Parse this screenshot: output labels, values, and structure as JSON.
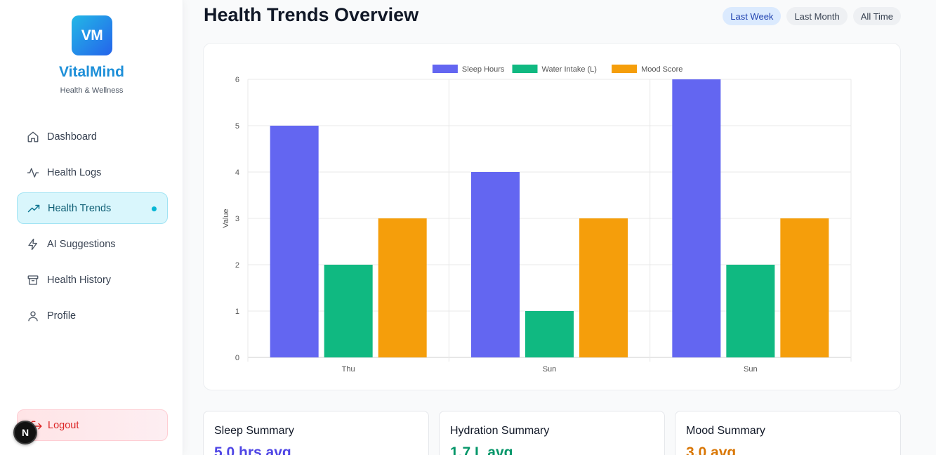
{
  "sidebar": {
    "logo_text": "VM",
    "brand": "VitalMind",
    "tagline": "Health & Wellness",
    "items": [
      {
        "label": "Dashboard",
        "icon": "home-icon"
      },
      {
        "label": "Health Logs",
        "icon": "activity-icon"
      },
      {
        "label": "Health Trends",
        "icon": "trending-up-icon",
        "active": true
      },
      {
        "label": "AI Suggestions",
        "icon": "zap-icon"
      },
      {
        "label": "Health History",
        "icon": "archive-icon"
      },
      {
        "label": "Profile",
        "icon": "user-icon"
      }
    ],
    "logout_label": "Logout",
    "badge_text": "N"
  },
  "header": {
    "title": "Health Trends Overview",
    "ranges": [
      {
        "label": "Last Week",
        "active": true
      },
      {
        "label": "Last Month"
      },
      {
        "label": "All Time"
      }
    ]
  },
  "chart_data": {
    "type": "bar",
    "categories": [
      "Thu",
      "Sun",
      "Sun"
    ],
    "series": [
      {
        "name": "Sleep Hours",
        "values": [
          5,
          4,
          6
        ],
        "color": "#6366f1"
      },
      {
        "name": "Water Intake (L)",
        "values": [
          2,
          1,
          2
        ],
        "color": "#10b981"
      },
      {
        "name": "Mood Score",
        "values": [
          3,
          3,
          3
        ],
        "color": "#f59e0b"
      }
    ],
    "ylabel": "Value",
    "ylim": [
      0,
      6
    ],
    "yticks": [
      0,
      1,
      2,
      3,
      4,
      5,
      6
    ],
    "legend": "top",
    "grid": true
  },
  "summaries": [
    {
      "title": "Sleep Summary",
      "value": "5.0 hrs avg",
      "color": "#4f46e5"
    },
    {
      "title": "Hydration Summary",
      "value": "1.7 L avg",
      "color": "#059669"
    },
    {
      "title": "Mood Summary",
      "value": "3.0 avg",
      "color": "#d97706"
    }
  ]
}
